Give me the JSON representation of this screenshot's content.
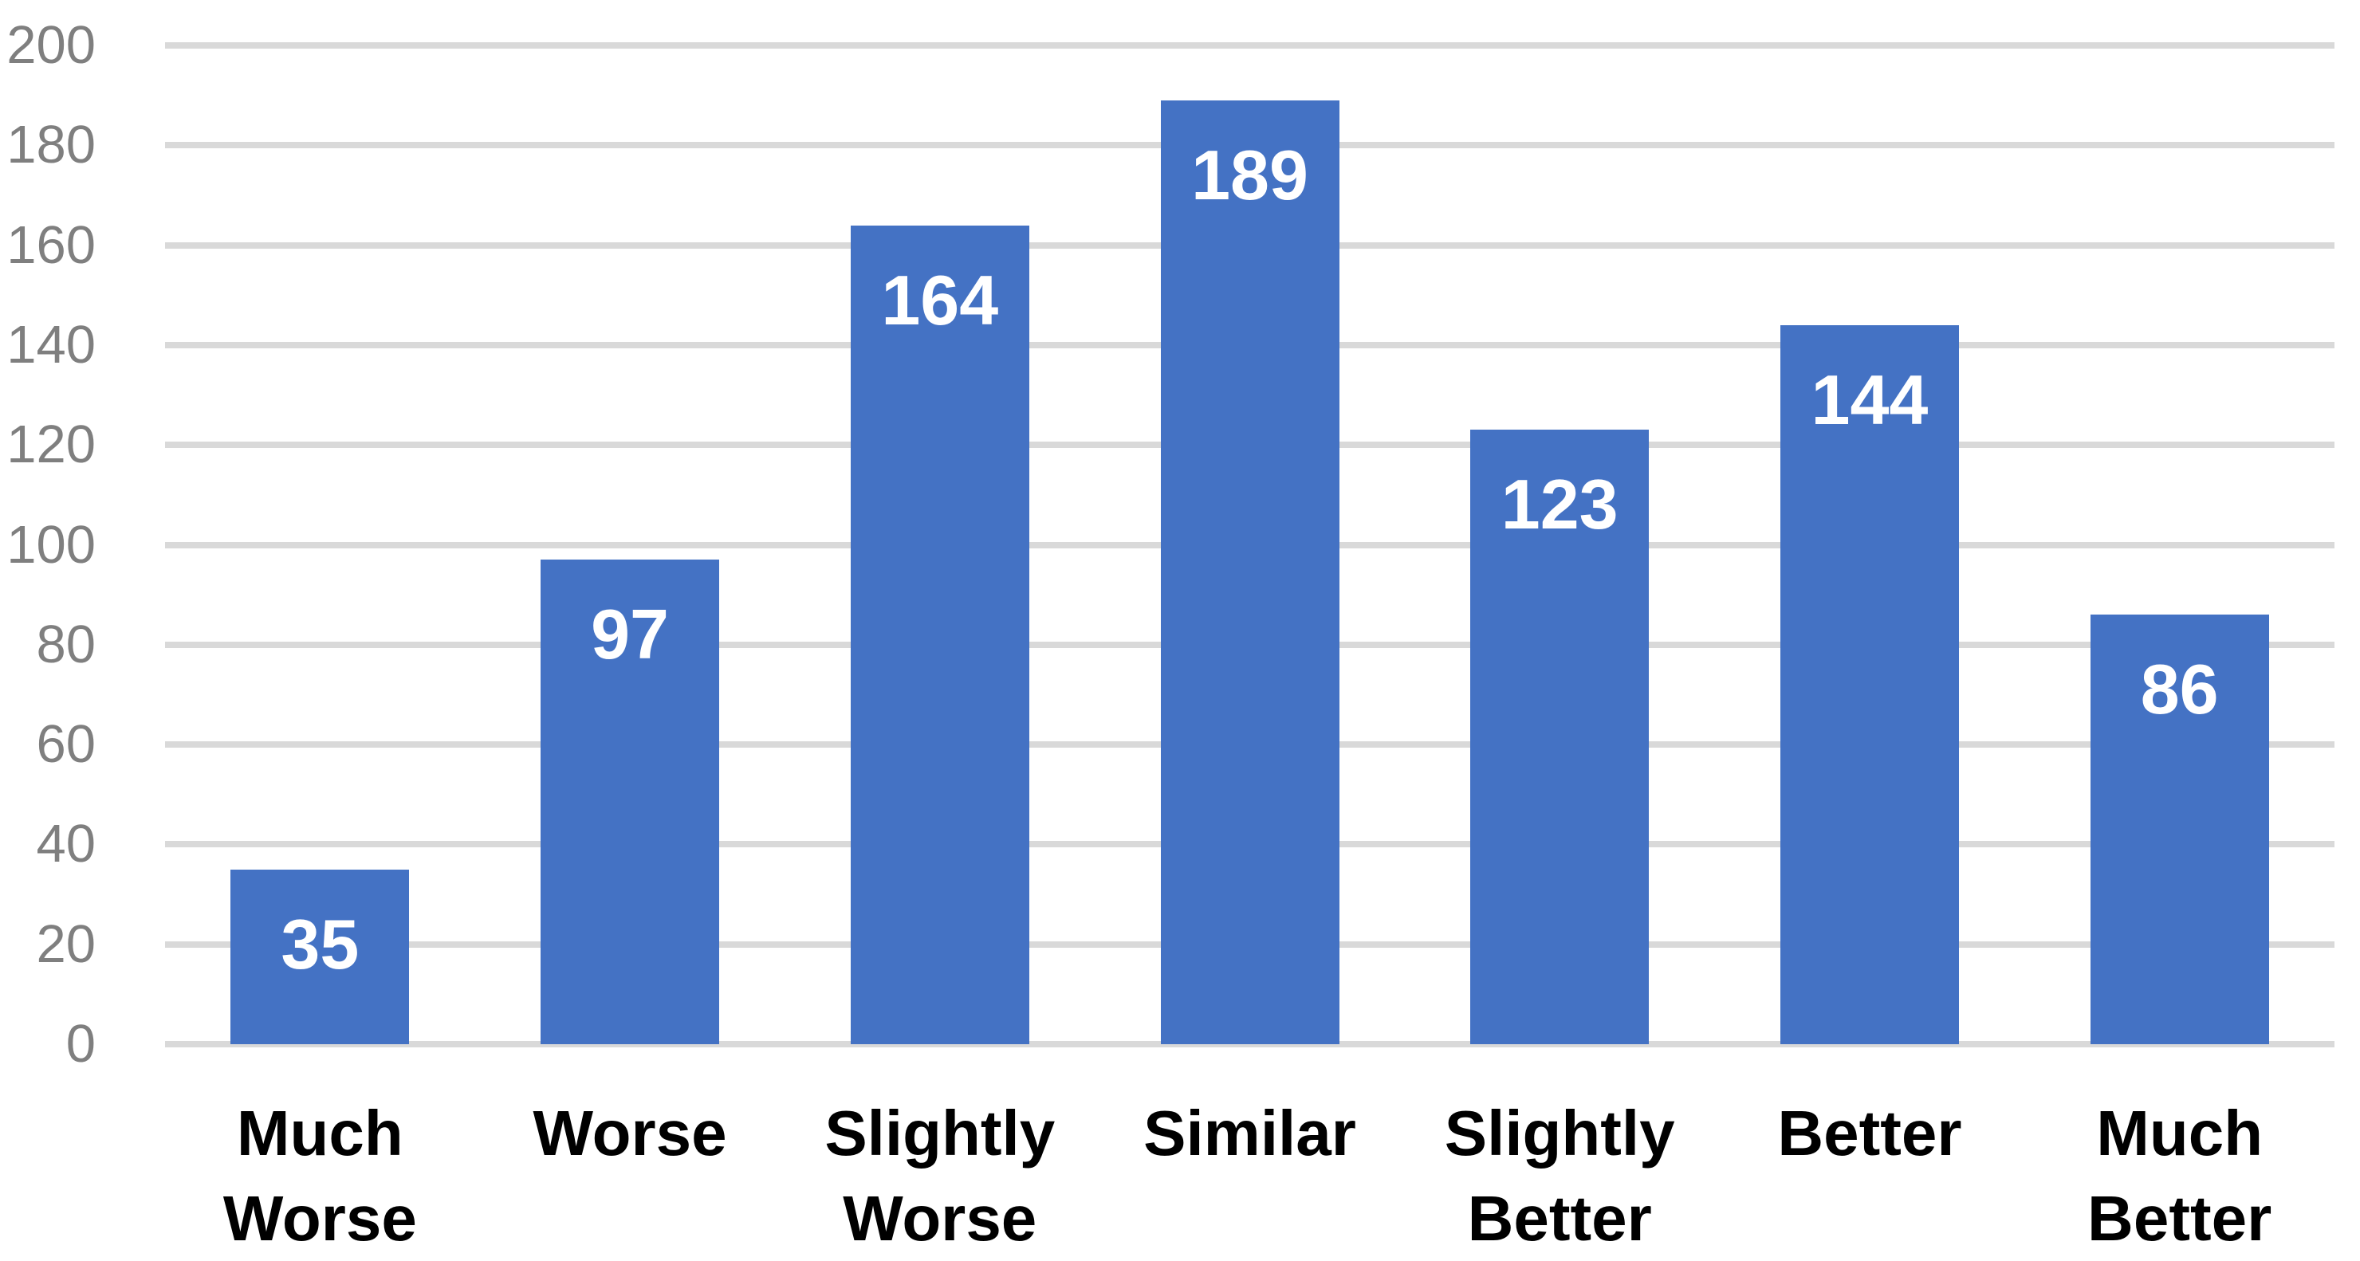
{
  "chart_data": {
    "type": "bar",
    "title": "",
    "xlabel": "",
    "ylabel": "",
    "categories": [
      "Much Worse",
      "Worse",
      "Slightly Worse",
      "Similar",
      "Slightly Better",
      "Better",
      "Much Better"
    ],
    "categories_wrapped": [
      "Much\nWorse",
      "Worse",
      "Slightly\nWorse",
      "Similar",
      "Slightly\nBetter",
      "Better",
      "Much\nBetter"
    ],
    "values": [
      35,
      97,
      164,
      189,
      123,
      144,
      86
    ],
    "data_labels": [
      "35",
      "97",
      "164",
      "189",
      "123",
      "144",
      "86"
    ],
    "ylim": [
      0,
      200
    ],
    "y_ticks": [
      0,
      20,
      40,
      60,
      80,
      100,
      120,
      140,
      160,
      180,
      200
    ],
    "grid": true,
    "legend": false,
    "colors": {
      "bar": "#4472C4",
      "gridline": "#D9D9D9",
      "y_tick_text": "#7F7F7F",
      "x_tick_text": "#000000",
      "data_label_text": "#FFFFFF",
      "background": "#FFFFFF"
    }
  }
}
